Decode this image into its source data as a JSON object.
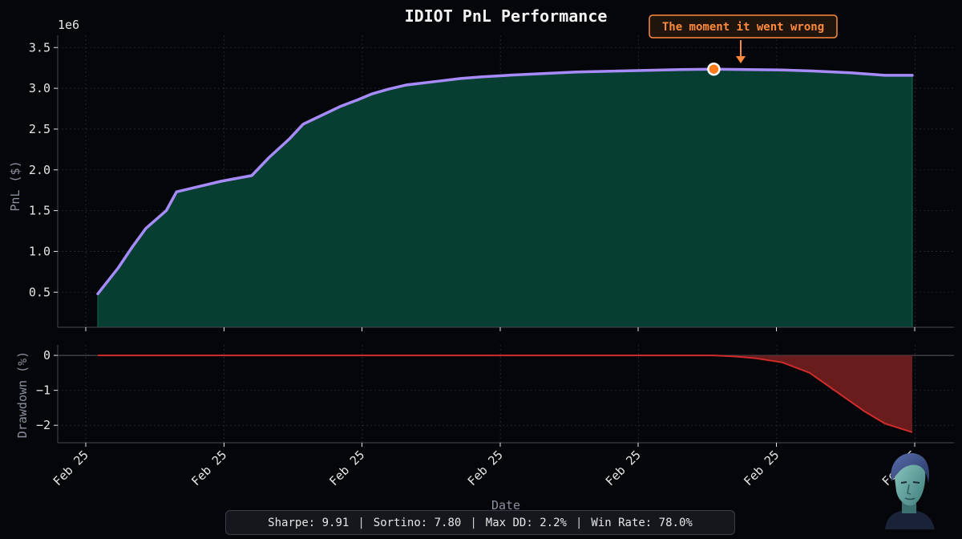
{
  "chart_data": [
    {
      "type": "area",
      "title": "IDIOT PnL Performance",
      "ylabel": "PnL ($)",
      "offset_text": "1e6",
      "ylim": [
        0.07,
        3.65
      ],
      "y_ticks": [
        0.5,
        1.0,
        1.5,
        2.0,
        2.5,
        3.0,
        3.5
      ],
      "y_tick_labels": [
        "0.5",
        "1.0",
        "1.5",
        "2.0",
        "2.5",
        "3.0",
        "3.5"
      ],
      "xlim": [
        -0.3,
        11.9
      ],
      "grid": true,
      "series": [
        {
          "color": "#a78bfa",
          "fill": "#063f31",
          "x": [
            0,
            0.3,
            0.5,
            0.7,
            1.0,
            1.15,
            1.5,
            1.8,
            2.25,
            2.5,
            2.8,
            3.0,
            3.3,
            3.55,
            3.8,
            4.0,
            4.25,
            4.5,
            5.0,
            5.3,
            5.6,
            6.0,
            6.5,
            7.0,
            7.5,
            8.0,
            8.5,
            9.0,
            9.5,
            10.0,
            10.5,
            11.0,
            11.5,
            11.9
          ],
          "y": [
            0.48,
            0.8,
            1.05,
            1.28,
            1.5,
            1.73,
            1.8,
            1.86,
            1.93,
            2.15,
            2.38,
            2.56,
            2.68,
            2.78,
            2.86,
            2.93,
            2.99,
            3.04,
            3.09,
            3.12,
            3.14,
            3.16,
            3.18,
            3.2,
            3.21,
            3.22,
            3.23,
            3.235,
            3.23,
            3.225,
            3.21,
            3.19,
            3.16,
            3.16
          ]
        }
      ],
      "marker": {
        "x": 9.0,
        "y": 3.235
      },
      "annotation": "The moment it went wrong"
    },
    {
      "type": "area",
      "ylabel": "Drawdown (%)",
      "xlabel": "Date",
      "ylim": [
        -2.5,
        0.3
      ],
      "y_ticks": [
        0,
        -1,
        -2
      ],
      "y_tick_labels": [
        "0",
        "−1",
        "−2"
      ],
      "x_tick_labels": [
        "Feb 25",
        "Feb 25",
        "Feb 25",
        "Feb 25",
        "Feb 25",
        "Feb 25",
        "Feb 25"
      ],
      "grid": true,
      "series": [
        {
          "color": "#d02c2c",
          "fill": "#6e1e1e",
          "x": [
            0,
            9.0,
            9.3,
            9.6,
            10.0,
            10.4,
            10.8,
            11.2,
            11.5,
            11.9
          ],
          "y": [
            0,
            0,
            -0.03,
            -0.08,
            -0.2,
            -0.5,
            -1.05,
            -1.6,
            -1.95,
            -2.2
          ]
        }
      ]
    }
  ],
  "stats": [
    "Sharpe: 9.91",
    "Sortino: 7.80",
    "Max DD: 2.2%",
    "Win Rate: 78.0%"
  ],
  "stats_separator": "|"
}
